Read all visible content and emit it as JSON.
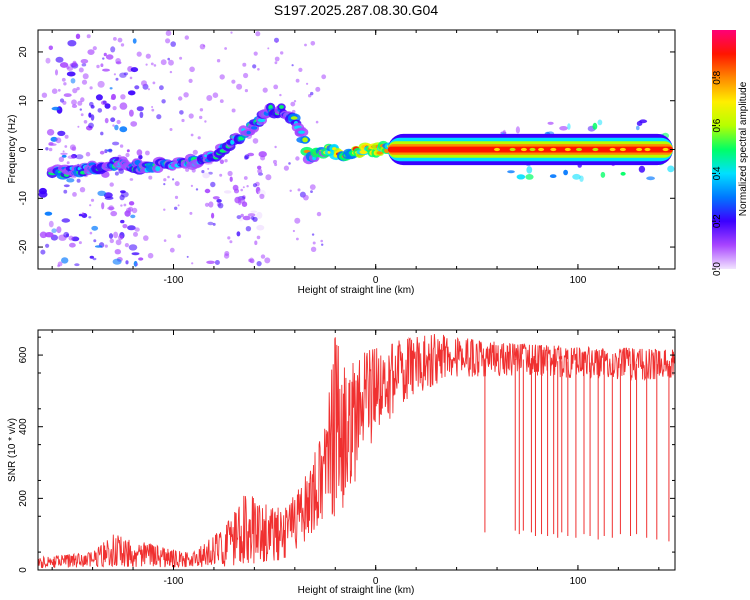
{
  "title": "S197.2025.287.08.30.G04",
  "chart_data": [
    {
      "type": "heatmap",
      "xlabel": "Height of straight line (km)",
      "ylabel": "Frequency (Hz)",
      "xlim": [
        -167,
        148
      ],
      "ylim": [
        -24.5,
        24.5
      ],
      "xticks": [
        -100,
        0,
        100
      ],
      "yticks": [
        -20,
        -10,
        0,
        10,
        20
      ],
      "colorbar": {
        "label": "Normalized spectral amplitude",
        "range": [
          0,
          1
        ],
        "ticks": [
          0.0,
          0.2,
          0.4,
          0.6,
          0.8
        ],
        "colors": [
          "#f2e4ff",
          "#a845ff",
          "#3b00ff",
          "#0077ff",
          "#00e0ff",
          "#00ff66",
          "#b6ff00",
          "#ffee00",
          "#ff8800",
          "#ff1500",
          "#ff0077"
        ]
      },
      "ridge": [
        {
          "x": -160,
          "y": -5
        },
        {
          "x": -145,
          "y": -4
        },
        {
          "x": -130,
          "y": -3
        },
        {
          "x": -115,
          "y": -3.5
        },
        {
          "x": -100,
          "y": -3
        },
        {
          "x": -88,
          "y": -2.5
        },
        {
          "x": -78,
          "y": -1
        },
        {
          "x": -70,
          "y": 2
        },
        {
          "x": -60,
          "y": 5
        },
        {
          "x": -52,
          "y": 8
        },
        {
          "x": -46,
          "y": 8
        },
        {
          "x": -40,
          "y": 6
        },
        {
          "x": -35,
          "y": 2
        },
        {
          "x": -33,
          "y": -2
        },
        {
          "x": -28,
          "y": -1
        },
        {
          "x": -22,
          "y": 0
        },
        {
          "x": -15,
          "y": -1.5
        },
        {
          "x": -5,
          "y": 0
        },
        {
          "x": 10,
          "y": 0
        },
        {
          "x": 146,
          "y": 0
        }
      ],
      "scatter_bands": [
        {
          "x_range": [
            -165,
            -115
          ],
          "y_range": [
            -24,
            24
          ],
          "level": 0.25
        },
        {
          "x_range": [
            -85,
            -55
          ],
          "y_range": [
            -24,
            0
          ],
          "level": 0.15
        },
        {
          "x_range": [
            60,
            146
          ],
          "y_range": [
            -6,
            6
          ],
          "level": 0.45
        }
      ]
    },
    {
      "type": "line",
      "xlabel": "Height of straight line (km)",
      "ylabel": "SNR (10 * v/v)",
      "xlim": [
        -167,
        148
      ],
      "ylim": [
        0,
        670
      ],
      "xticks": [
        -100,
        0,
        100
      ],
      "yticks": [
        0,
        200,
        400,
        600
      ],
      "color": "#f03030",
      "envelope": [
        {
          "x": -167,
          "lo": 5,
          "hi": 35
        },
        {
          "x": -140,
          "lo": 8,
          "hi": 50
        },
        {
          "x": -130,
          "lo": 10,
          "hi": 100
        },
        {
          "x": -110,
          "lo": 8,
          "hi": 70
        },
        {
          "x": -90,
          "lo": 8,
          "hi": 50
        },
        {
          "x": -75,
          "lo": 10,
          "hi": 120
        },
        {
          "x": -65,
          "lo": 15,
          "hi": 210
        },
        {
          "x": -55,
          "lo": 20,
          "hi": 200
        },
        {
          "x": -45,
          "lo": 30,
          "hi": 170
        },
        {
          "x": -35,
          "lo": 80,
          "hi": 260
        },
        {
          "x": -25,
          "lo": 150,
          "hi": 400
        },
        {
          "x": -20,
          "lo": 150,
          "hi": 670
        },
        {
          "x": -15,
          "lo": 180,
          "hi": 560
        },
        {
          "x": -10,
          "lo": 250,
          "hi": 600
        },
        {
          "x": 0,
          "lo": 380,
          "hi": 620
        },
        {
          "x": 10,
          "lo": 440,
          "hi": 640
        },
        {
          "x": 20,
          "lo": 490,
          "hi": 650
        },
        {
          "x": 30,
          "lo": 520,
          "hi": 660
        },
        {
          "x": 40,
          "lo": 540,
          "hi": 650
        },
        {
          "x": 55,
          "lo": 540,
          "hi": 640
        },
        {
          "x": 75,
          "lo": 545,
          "hi": 630
        },
        {
          "x": 100,
          "lo": 535,
          "hi": 625
        },
        {
          "x": 125,
          "lo": 530,
          "hi": 620
        },
        {
          "x": 148,
          "lo": 535,
          "hi": 615
        }
      ],
      "dropouts": [
        {
          "x": 54,
          "y": 105
        },
        {
          "x": 69,
          "y": 110
        },
        {
          "x": 71,
          "y": 100
        },
        {
          "x": 73,
          "y": 110
        },
        {
          "x": 77,
          "y": 105
        },
        {
          "x": 79,
          "y": 95
        },
        {
          "x": 82,
          "y": 100
        },
        {
          "x": 85,
          "y": 95
        },
        {
          "x": 88,
          "y": 100
        },
        {
          "x": 90,
          "y": 90
        },
        {
          "x": 92,
          "y": 105
        },
        {
          "x": 95,
          "y": 95
        },
        {
          "x": 99,
          "y": 90
        },
        {
          "x": 103,
          "y": 100
        },
        {
          "x": 106,
          "y": 95
        },
        {
          "x": 110,
          "y": 85
        },
        {
          "x": 113,
          "y": 95
        },
        {
          "x": 117,
          "y": 90
        },
        {
          "x": 121,
          "y": 100
        },
        {
          "x": 126,
          "y": 95
        },
        {
          "x": 129,
          "y": 100
        },
        {
          "x": 134,
          "y": 90
        },
        {
          "x": 139,
          "y": 85
        },
        {
          "x": 145,
          "y": 80
        }
      ]
    }
  ]
}
